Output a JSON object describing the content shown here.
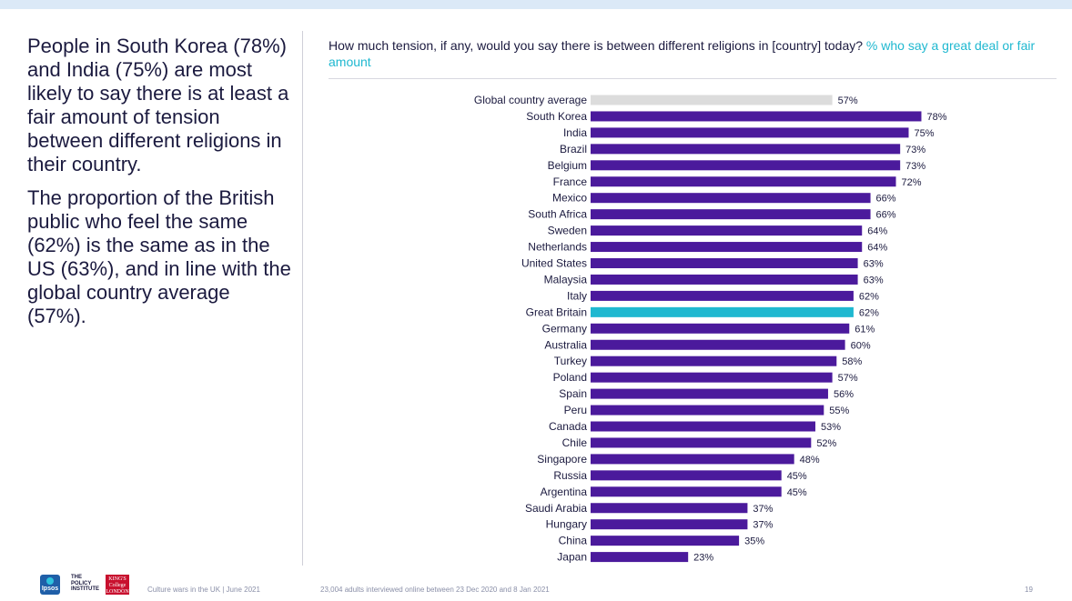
{
  "summary": {
    "paragraph_1": "People in South Korea (78%) and India (75%) are most likely to say there is at least a fair amount of tension between different religions in their country.",
    "paragraph_2": "The proportion of the British public who feel the same (62%) is the same as in the US (63%), and in line with the global country average (57%)."
  },
  "question": {
    "text": "How much tension, if any, would you say there is between different religions in [country] today?",
    "highlight": "% who say a great deal or fair amount"
  },
  "colors": {
    "bar": "#4b1a9c",
    "average_bar": "#dcdcdc",
    "highlight_bar": "#1fb8d0",
    "highlight_text": "#1fb8d0",
    "text": "#1b1a3f"
  },
  "chart_data": {
    "type": "bar",
    "orientation": "horizontal",
    "title": "How much tension, if any, would you say there is between different religions in [country] today? % who say a great deal or fair amount",
    "xlim": [
      0,
      100
    ],
    "value_suffix": "%",
    "categories": [
      "Global country average",
      "South Korea",
      "India",
      "Brazil",
      "Belgium",
      "France",
      "Mexico",
      "South Africa",
      "Sweden",
      "Netherlands",
      "United States",
      "Malaysia",
      "Italy",
      "Great Britain",
      "Germany",
      "Australia",
      "Turkey",
      "Poland",
      "Spain",
      "Peru",
      "Canada",
      "Chile",
      "Singapore",
      "Russia",
      "Argentina",
      "Saudi Arabia",
      "Hungary",
      "China",
      "Japan"
    ],
    "values": [
      57,
      78,
      75,
      73,
      73,
      72,
      66,
      66,
      64,
      64,
      63,
      63,
      62,
      62,
      61,
      60,
      58,
      57,
      56,
      55,
      53,
      52,
      48,
      45,
      45,
      37,
      37,
      35,
      23
    ],
    "special": {
      "Global country average": "average",
      "Great Britain": "highlight"
    }
  },
  "footer": {
    "ipsos": "Ipsos",
    "policy_institute": "THE POLICY INSTITUTE",
    "kings": "KING'S College LONDON",
    "report": "Culture wars in the UK | June 2021",
    "sample": "23,004 adults interviewed online between 23 Dec 2020 and 8 Jan 2021",
    "page": "19"
  }
}
